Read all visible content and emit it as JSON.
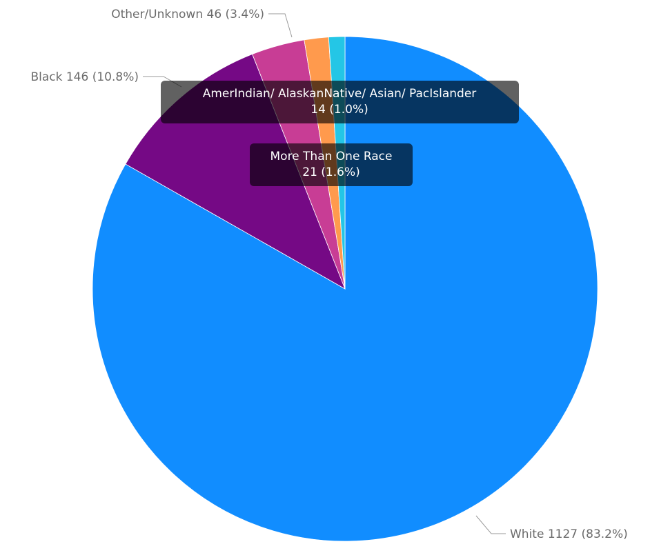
{
  "chart_data": {
    "type": "pie",
    "title": "",
    "slices": [
      {
        "label": "White",
        "value": 1127,
        "percent": "83.2%",
        "color": "#118DFF",
        "text": "White 1127 (83.2%)"
      },
      {
        "label": "Black",
        "value": 146,
        "percent": "10.8%",
        "color": "#750985",
        "text": "Black 146 (10.8%)"
      },
      {
        "label": "Other/Unknown",
        "value": 46,
        "percent": "3.4%",
        "color": "#C83D95",
        "text": "Other/Unknown 46 (3.4%)"
      },
      {
        "label": "More Than One Race",
        "value": 21,
        "percent": "1.6%",
        "color": "#FF9A4D",
        "line1": "More Than One Race",
        "line2": "21 (1.6%)"
      },
      {
        "label": "AmerIndian/ AlaskanNative/ Asian/ PacIslander",
        "value": 14,
        "percent": "1.0%",
        "color": "#24C6E6",
        "line1": "AmerIndian/ AlaskanNative/ Asian/ PacIslander",
        "line2": "14 (1.0%)"
      }
    ]
  }
}
